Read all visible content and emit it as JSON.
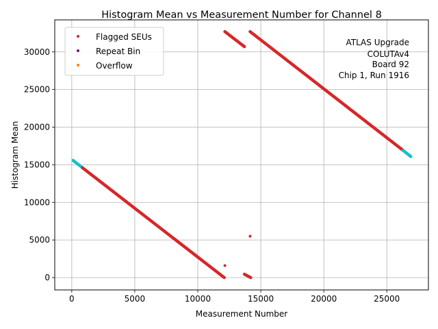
{
  "chart_data": {
    "type": "scatter",
    "title": "Histogram Mean vs Measurement Number for Channel 8",
    "xlabel": "Measurement Number",
    "ylabel": "Histogram Mean",
    "xlim": [
      -1350,
      28300
    ],
    "ylim": [
      -1640,
      34260
    ],
    "xticks": [
      0,
      5000,
      10000,
      15000,
      20000,
      25000
    ],
    "yticks": [
      0,
      5000,
      10000,
      15000,
      20000,
      25000,
      30000
    ],
    "grid": true,
    "legend_position": "top-left",
    "legend": [
      {
        "label": "Flagged SEUs",
        "color": "#d62728"
      },
      {
        "label": "Repeat Bin",
        "color": "#7f0f7e"
      },
      {
        "label": "Overflow",
        "color": "#ff7f0e"
      }
    ],
    "annotation": [
      "ATLAS Upgrade",
      "COLUTAv4",
      "Board 92",
      "Chip 1, Run 1916"
    ],
    "series": [
      {
        "name": "Normal (cyan) segment 1",
        "color": "#17becf",
        "start": [
          100,
          15580
        ],
        "end": [
          850,
          14600
        ]
      },
      {
        "name": "Flagged SEUs segment 1",
        "color": "#d62728",
        "start": [
          850,
          14600
        ],
        "end": [
          12100,
          0
        ]
      },
      {
        "name": "Flagged SEUs segment 2",
        "color": "#d62728",
        "start": [
          12150,
          32700
        ],
        "end": [
          13700,
          30700
        ]
      },
      {
        "name": "Flagged SEUs segment 3",
        "color": "#d62728",
        "start": [
          13700,
          450
        ],
        "end": [
          14200,
          0
        ]
      },
      {
        "name": "Flagged SEUs segment 4",
        "color": "#d62728",
        "start": [
          14150,
          32700
        ],
        "end": [
          26300,
          16900
        ]
      },
      {
        "name": "Normal (cyan) segment 2",
        "color": "#17becf",
        "start": [
          26300,
          16900
        ],
        "end": [
          26900,
          16100
        ]
      }
    ],
    "outliers": [
      {
        "x": 12150,
        "y": 1600
      },
      {
        "x": 14150,
        "y": 5500
      }
    ]
  }
}
